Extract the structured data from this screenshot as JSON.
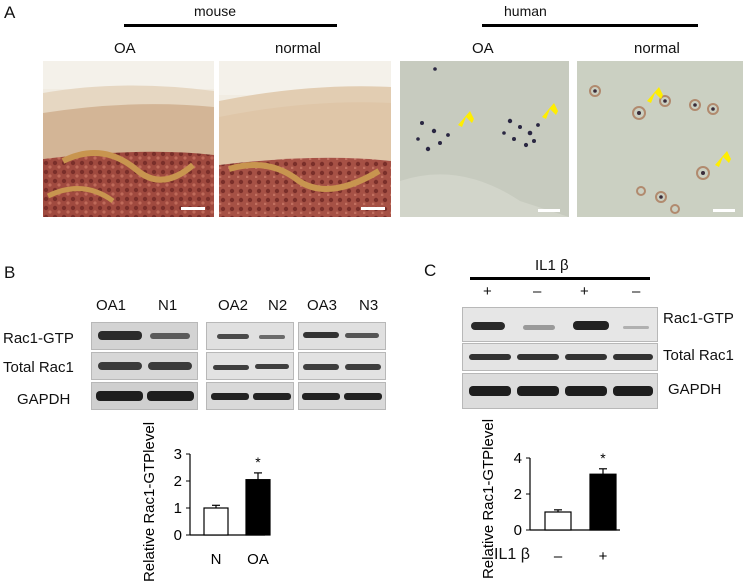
{
  "panels": {
    "a": "A",
    "b": "B",
    "c": "C"
  },
  "histology": {
    "mouse_header": "mouse",
    "human_header": "human",
    "mouse_oa": "OA",
    "mouse_normal": "normal",
    "human_oa": "OA",
    "human_normal": "normal"
  },
  "panel_b": {
    "lanes": [
      "OA1",
      "N1",
      "OA2",
      "N2",
      "OA3",
      "N3"
    ],
    "rows": [
      "Rac1-GTP",
      "Total Rac1",
      "GAPDH"
    ]
  },
  "panel_c": {
    "treatment": "IL1 β",
    "signs": [
      "+",
      "–",
      "+",
      "–"
    ],
    "rows": [
      "Rac1-GTP",
      "Total Rac1",
      "GAPDH"
    ],
    "xlabel_prefix": "IL1 β",
    "xsigns": [
      "–",
      "+"
    ]
  },
  "chart_data": [
    {
      "type": "bar",
      "categories": [
        "N",
        "OA"
      ],
      "values": [
        1.0,
        2.05
      ],
      "errors": [
        0.1,
        0.25
      ],
      "colors": [
        "#ffffff",
        "#000000"
      ],
      "significance": [
        "",
        "*"
      ],
      "ylabel": "Relative Rac1-GTPlevel",
      "ylim": [
        0,
        3
      ],
      "yticks": [
        "0",
        "1",
        "2",
        "3"
      ]
    },
    {
      "type": "bar",
      "categories": [
        "–",
        "+"
      ],
      "values": [
        1.0,
        3.1
      ],
      "errors": [
        0.12,
        0.3
      ],
      "colors": [
        "#ffffff",
        "#000000"
      ],
      "significance": [
        "",
        "*"
      ],
      "ylabel": "Relative Rac1-GTPlevel",
      "ylim": [
        0,
        4
      ],
      "yticks": [
        "0",
        "2",
        "4"
      ]
    }
  ]
}
